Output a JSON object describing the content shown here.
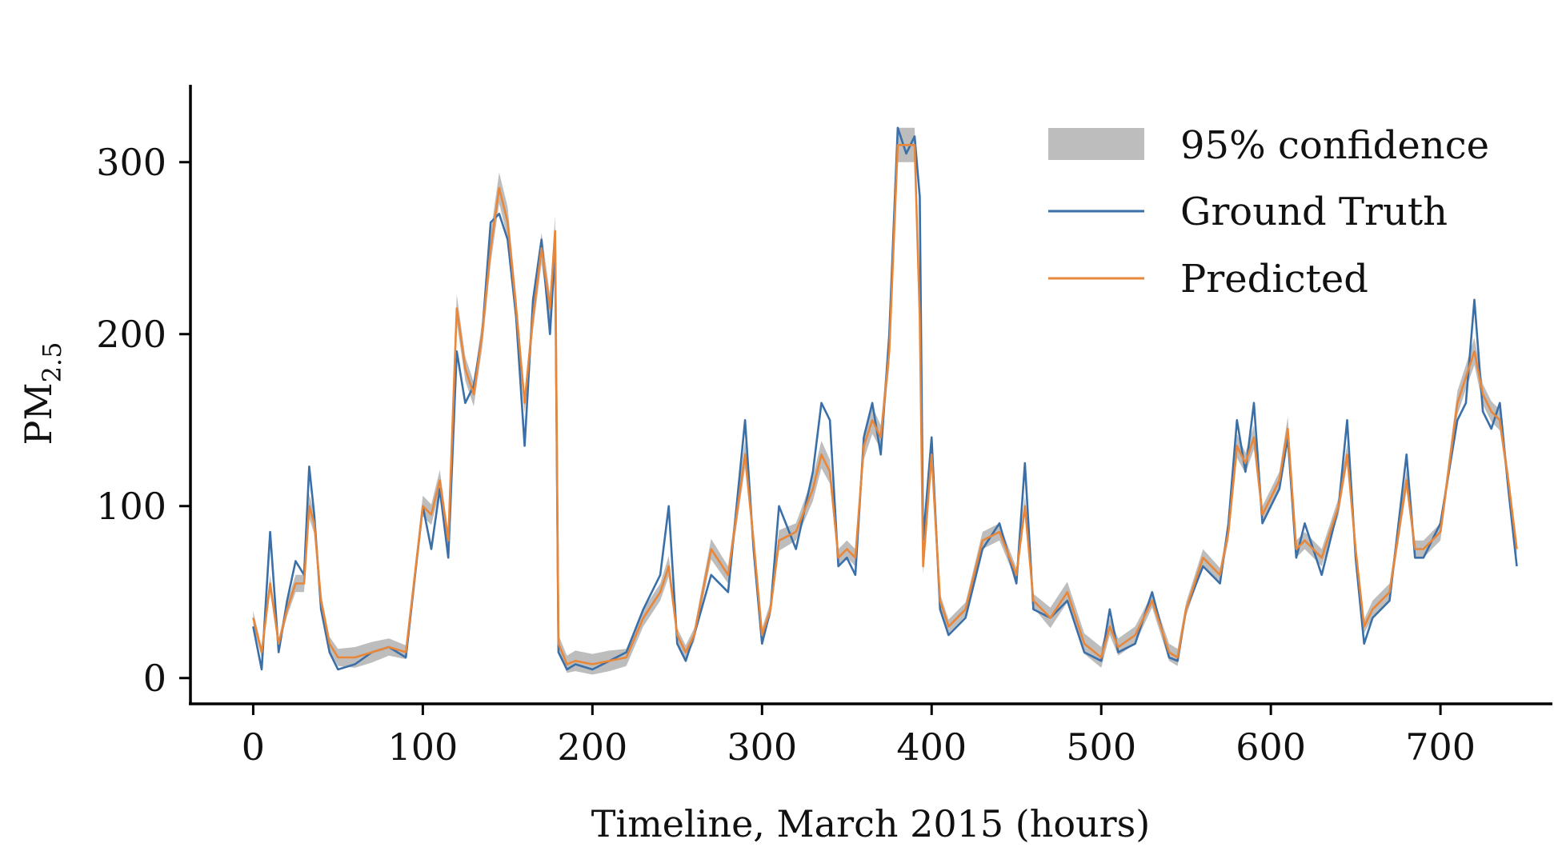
{
  "chart_data": {
    "type": "line",
    "xlabel": "Timeline, March 2015 (hours)",
    "ylabel": "PM",
    "ylabel_subscript": "2.5",
    "xlim": [
      -37,
      766
    ],
    "ylim": [
      -15,
      345
    ],
    "x_ticks": [
      0,
      100,
      200,
      300,
      400,
      500,
      600,
      700
    ],
    "y_ticks": [
      0,
      100,
      200,
      300
    ],
    "x_tick_labels": [
      "0",
      "100",
      "200",
      "300",
      "400",
      "500",
      "600",
      "700"
    ],
    "y_tick_labels": [
      "0",
      "100",
      "200",
      "300"
    ],
    "grid": false,
    "legend_position": "top-right",
    "colors": {
      "ground_truth": "#3a6fa8",
      "predicted": "#e8873a",
      "confidence": "#bdbdbd"
    },
    "legend": {
      "confidence": "95% confidence",
      "ground_truth": "Ground Truth",
      "predicted": "Predicted"
    },
    "x": [
      0,
      5,
      10,
      15,
      20,
      25,
      30,
      33,
      36,
      40,
      45,
      50,
      60,
      70,
      80,
      90,
      100,
      105,
      110,
      115,
      120,
      125,
      130,
      135,
      140,
      145,
      150,
      155,
      160,
      165,
      170,
      175,
      178,
      180,
      185,
      190,
      200,
      210,
      220,
      230,
      240,
      245,
      250,
      255,
      260,
      270,
      280,
      290,
      295,
      300,
      305,
      310,
      320,
      330,
      335,
      340,
      345,
      350,
      355,
      360,
      365,
      370,
      375,
      380,
      385,
      390,
      393,
      395,
      400,
      405,
      410,
      420,
      430,
      440,
      450,
      455,
      460,
      470,
      480,
      490,
      500,
      505,
      510,
      520,
      530,
      540,
      545,
      550,
      560,
      570,
      575,
      580,
      585,
      590,
      595,
      600,
      605,
      610,
      615,
      620,
      630,
      640,
      645,
      650,
      655,
      660,
      670,
      680,
      685,
      690,
      700,
      710,
      715,
      720,
      725,
      730,
      735,
      740,
      745
    ],
    "series": [
      {
        "name": "Ground Truth",
        "values": [
          30,
          5,
          85,
          15,
          45,
          68,
          60,
          123,
          95,
          40,
          15,
          5,
          8,
          15,
          18,
          12,
          100,
          75,
          110,
          70,
          190,
          160,
          170,
          200,
          265,
          270,
          255,
          210,
          135,
          220,
          255,
          200,
          250,
          15,
          5,
          8,
          5,
          10,
          15,
          40,
          60,
          100,
          20,
          10,
          25,
          60,
          50,
          150,
          75,
          20,
          40,
          100,
          75,
          120,
          160,
          150,
          65,
          70,
          60,
          140,
          160,
          130,
          200,
          320,
          305,
          315,
          280,
          80,
          140,
          40,
          25,
          35,
          75,
          90,
          55,
          125,
          40,
          35,
          45,
          15,
          10,
          40,
          15,
          20,
          50,
          12,
          10,
          40,
          65,
          55,
          90,
          150,
          120,
          160,
          90,
          100,
          110,
          140,
          70,
          90,
          60,
          100,
          150,
          70,
          20,
          35,
          45,
          130,
          70,
          70,
          90,
          150,
          160,
          220,
          155,
          145,
          160,
          110,
          65
        ]
      },
      {
        "name": "Predicted",
        "values": [
          35,
          15,
          55,
          20,
          40,
          55,
          55,
          100,
          90,
          45,
          20,
          12,
          12,
          15,
          18,
          15,
          100,
          95,
          115,
          80,
          215,
          180,
          165,
          200,
          250,
          285,
          265,
          215,
          160,
          210,
          250,
          215,
          260,
          20,
          8,
          10,
          8,
          10,
          12,
          35,
          50,
          65,
          25,
          15,
          25,
          75,
          60,
          130,
          80,
          25,
          40,
          80,
          85,
          110,
          130,
          120,
          70,
          75,
          70,
          135,
          150,
          140,
          190,
          310,
          310,
          310,
          210,
          65,
          130,
          45,
          30,
          40,
          80,
          85,
          60,
          100,
          45,
          35,
          50,
          20,
          12,
          30,
          18,
          25,
          45,
          15,
          12,
          40,
          70,
          60,
          85,
          135,
          125,
          140,
          95,
          105,
          115,
          145,
          75,
          80,
          70,
          100,
          130,
          75,
          30,
          40,
          50,
          115,
          75,
          75,
          85,
          160,
          175,
          190,
          165,
          155,
          150,
          115,
          75
        ]
      }
    ],
    "confidence_half_width": [
      4,
      3,
      5,
      3,
      4,
      5,
      5,
      7,
      6,
      4,
      4,
      5,
      6,
      6,
      5,
      4,
      6,
      6,
      6,
      5,
      8,
      7,
      7,
      8,
      9,
      9,
      9,
      8,
      6,
      8,
      9,
      8,
      9,
      5,
      5,
      6,
      6,
      6,
      5,
      5,
      5,
      6,
      4,
      4,
      4,
      6,
      5,
      8,
      5,
      4,
      4,
      6,
      5,
      7,
      8,
      7,
      5,
      5,
      5,
      8,
      8,
      7,
      9,
      10,
      10,
      10,
      9,
      5,
      7,
      4,
      4,
      4,
      5,
      5,
      4,
      6,
      4,
      6,
      6,
      6,
      6,
      5,
      5,
      5,
      4,
      5,
      5,
      4,
      5,
      4,
      5,
      7,
      6,
      7,
      5,
      5,
      5,
      7,
      5,
      5,
      5,
      5,
      6,
      4,
      4,
      5,
      5,
      6,
      5,
      5,
      5,
      7,
      7,
      8,
      6,
      6,
      6,
      5,
      4
    ]
  }
}
